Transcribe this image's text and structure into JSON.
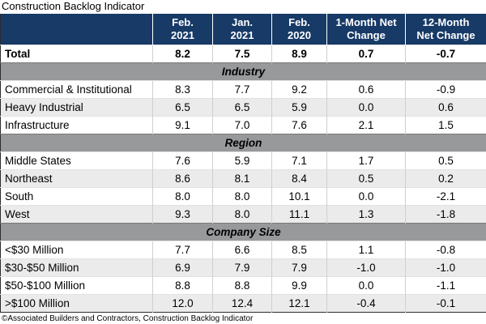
{
  "colors": {
    "header_bg": "#173a67",
    "header_text": "#ffffff",
    "band_bg": "#97999b",
    "alt_row_bg": "#ebebeb"
  },
  "chart_data": {
    "type": "table",
    "title": "Construction Backlog Indicator",
    "source": "©Associated Builders and Contractors, Construction Backlog Indicator",
    "columns": [
      [
        "Feb.",
        "2021"
      ],
      [
        "Jan.",
        "2021"
      ],
      [
        "Feb.",
        "2020"
      ],
      [
        "1-Month Net",
        "Change"
      ],
      [
        "12-Month",
        "Net Change"
      ]
    ],
    "total": {
      "label": "Total",
      "values": [
        "8.2",
        "7.5",
        "8.9",
        "0.7",
        "-0.7"
      ]
    },
    "sections": [
      {
        "name": "Industry",
        "rows": [
          {
            "label": "Commercial & Institutional",
            "values": [
              "8.3",
              "7.7",
              "9.2",
              "0.6",
              "-0.9"
            ]
          },
          {
            "label": "Heavy Industrial",
            "values": [
              "6.5",
              "6.5",
              "5.9",
              "0.0",
              "0.6"
            ]
          },
          {
            "label": "Infrastructure",
            "values": [
              "9.1",
              "7.0",
              "7.6",
              "2.1",
              "1.5"
            ]
          }
        ]
      },
      {
        "name": "Region",
        "rows": [
          {
            "label": "Middle States",
            "values": [
              "7.6",
              "5.9",
              "7.1",
              "1.7",
              "0.5"
            ]
          },
          {
            "label": "Northeast",
            "values": [
              "8.6",
              "8.1",
              "8.4",
              "0.5",
              "0.2"
            ]
          },
          {
            "label": "South",
            "values": [
              "8.0",
              "8.0",
              "10.1",
              "0.0",
              "-2.1"
            ]
          },
          {
            "label": "West",
            "values": [
              "9.3",
              "8.0",
              "11.1",
              "1.3",
              "-1.8"
            ]
          }
        ]
      },
      {
        "name": "Company Size",
        "rows": [
          {
            "label": "<$30 Million",
            "values": [
              "7.7",
              "6.6",
              "8.5",
              "1.1",
              "-0.8"
            ]
          },
          {
            "label": "$30-$50 Million",
            "values": [
              "6.9",
              "7.9",
              "7.9",
              "-1.0",
              "-1.0"
            ]
          },
          {
            "label": "$50-$100 Million",
            "values": [
              "8.8",
              "8.8",
              "9.9",
              "0.0",
              "-1.1"
            ]
          },
          {
            "label": ">$100 Million",
            "values": [
              "12.0",
              "12.4",
              "12.1",
              "-0.4",
              "-0.1"
            ]
          }
        ]
      }
    ]
  }
}
